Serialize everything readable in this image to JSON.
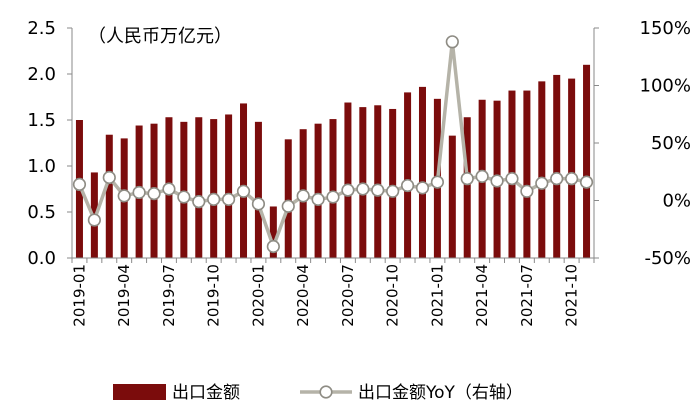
{
  "chart_data": {
    "type": "bar+line",
    "unit_label": "（人民币万亿元）",
    "categories": [
      "2019-01",
      "2019-02",
      "2019-03",
      "2019-04",
      "2019-05",
      "2019-06",
      "2019-07",
      "2019-08",
      "2019-09",
      "2019-10",
      "2019-11",
      "2019-12",
      "2020-01",
      "2020-02",
      "2020-03",
      "2020-04",
      "2020-05",
      "2020-06",
      "2020-07",
      "2020-08",
      "2020-09",
      "2020-10",
      "2020-11",
      "2020-12",
      "2021-01",
      "2021-02",
      "2021-03",
      "2021-04",
      "2021-05",
      "2021-06",
      "2021-07",
      "2021-08",
      "2021-09",
      "2021-10",
      "2021-11"
    ],
    "x_tick_labels": [
      "2019-01",
      "",
      "",
      "2019-04",
      "",
      "",
      "2019-07",
      "",
      "",
      "2019-10",
      "",
      "",
      "2020-01",
      "",
      "",
      "2020-04",
      "",
      "",
      "2020-07",
      "",
      "",
      "2020-10",
      "",
      "",
      "2021-01",
      "",
      "",
      "2021-04",
      "",
      "",
      "2021-07",
      "",
      "",
      "2021-10",
      ""
    ],
    "series": [
      {
        "name": "出口金额",
        "kind": "bar",
        "axis": "left",
        "color": "#7B0C0C",
        "values": [
          1.5,
          0.93,
          1.34,
          1.3,
          1.44,
          1.46,
          1.53,
          1.48,
          1.53,
          1.51,
          1.56,
          1.68,
          1.48,
          0.56,
          1.29,
          1.4,
          1.46,
          1.51,
          1.69,
          1.64,
          1.66,
          1.62,
          1.8,
          1.86,
          1.73,
          1.33,
          1.53,
          1.72,
          1.71,
          1.82,
          1.82,
          1.92,
          1.99,
          1.95,
          2.1
        ]
      },
      {
        "name": "出口金额YoY（右轴）",
        "kind": "line",
        "axis": "right",
        "color": "#B5B3A8",
        "values": [
          14,
          -17,
          20,
          4,
          7,
          6,
          10,
          3,
          -1,
          1,
          1,
          8,
          -3,
          -40,
          -5,
          4,
          1,
          3,
          9,
          10,
          9,
          8,
          13,
          11,
          16,
          138,
          19,
          21,
          17,
          19,
          8,
          15,
          19,
          19,
          16
        ]
      }
    ],
    "y_left": {
      "min": 0.0,
      "max": 2.5,
      "ticks": [
        "0.0",
        "0.5",
        "1.0",
        "1.5",
        "2.0",
        "2.5"
      ]
    },
    "y_right": {
      "min": -50,
      "max": 150,
      "ticks": [
        "-50%",
        "0%",
        "50%",
        "100%",
        "150%"
      ]
    },
    "legend_position": "bottom"
  }
}
